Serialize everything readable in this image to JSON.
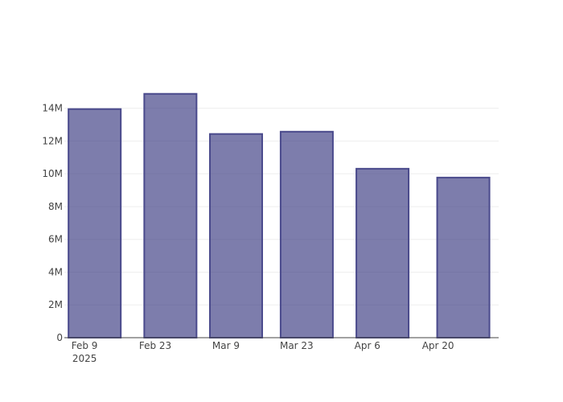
{
  "chart_data": {
    "type": "bar",
    "x": [
      "2025-02-11",
      "2025-02-26",
      "2025-03-11",
      "2025-03-25",
      "2025-04-09",
      "2025-04-25"
    ],
    "values": [
      13950000,
      14880000,
      12430000,
      12570000,
      10310000,
      9770000
    ],
    "color": "rgba(55,55,128,0.65)",
    "edge_color": "#4a4a8c",
    "xlim": [
      "2025-02-05",
      "2025-05-02"
    ],
    "xticks": [
      {
        "value": "2025-02-09",
        "label": "Feb 9"
      },
      {
        "value": "2025-02-23",
        "label": "Feb 23"
      },
      {
        "value": "2025-03-09",
        "label": "Mar 9"
      },
      {
        "value": "2025-03-23",
        "label": "Mar 23"
      },
      {
        "value": "2025-04-06",
        "label": "Apr 6"
      },
      {
        "value": "2025-04-20",
        "label": "Apr 20"
      }
    ],
    "x_year_label": "2025",
    "ylim": [
      0,
      15700000
    ],
    "yticks": [
      0,
      {
        "value": 2000000,
        "label": "2M"
      },
      {
        "value": 4000000,
        "label": "4M"
      },
      {
        "value": 6000000,
        "label": "6M"
      },
      {
        "value": 8000000,
        "label": "8M"
      },
      {
        "value": 10000000,
        "label": "10M"
      },
      {
        "value": 12000000,
        "label": "12M"
      },
      {
        "value": 14000000,
        "label": "14M"
      }
    ],
    "grid": true
  }
}
